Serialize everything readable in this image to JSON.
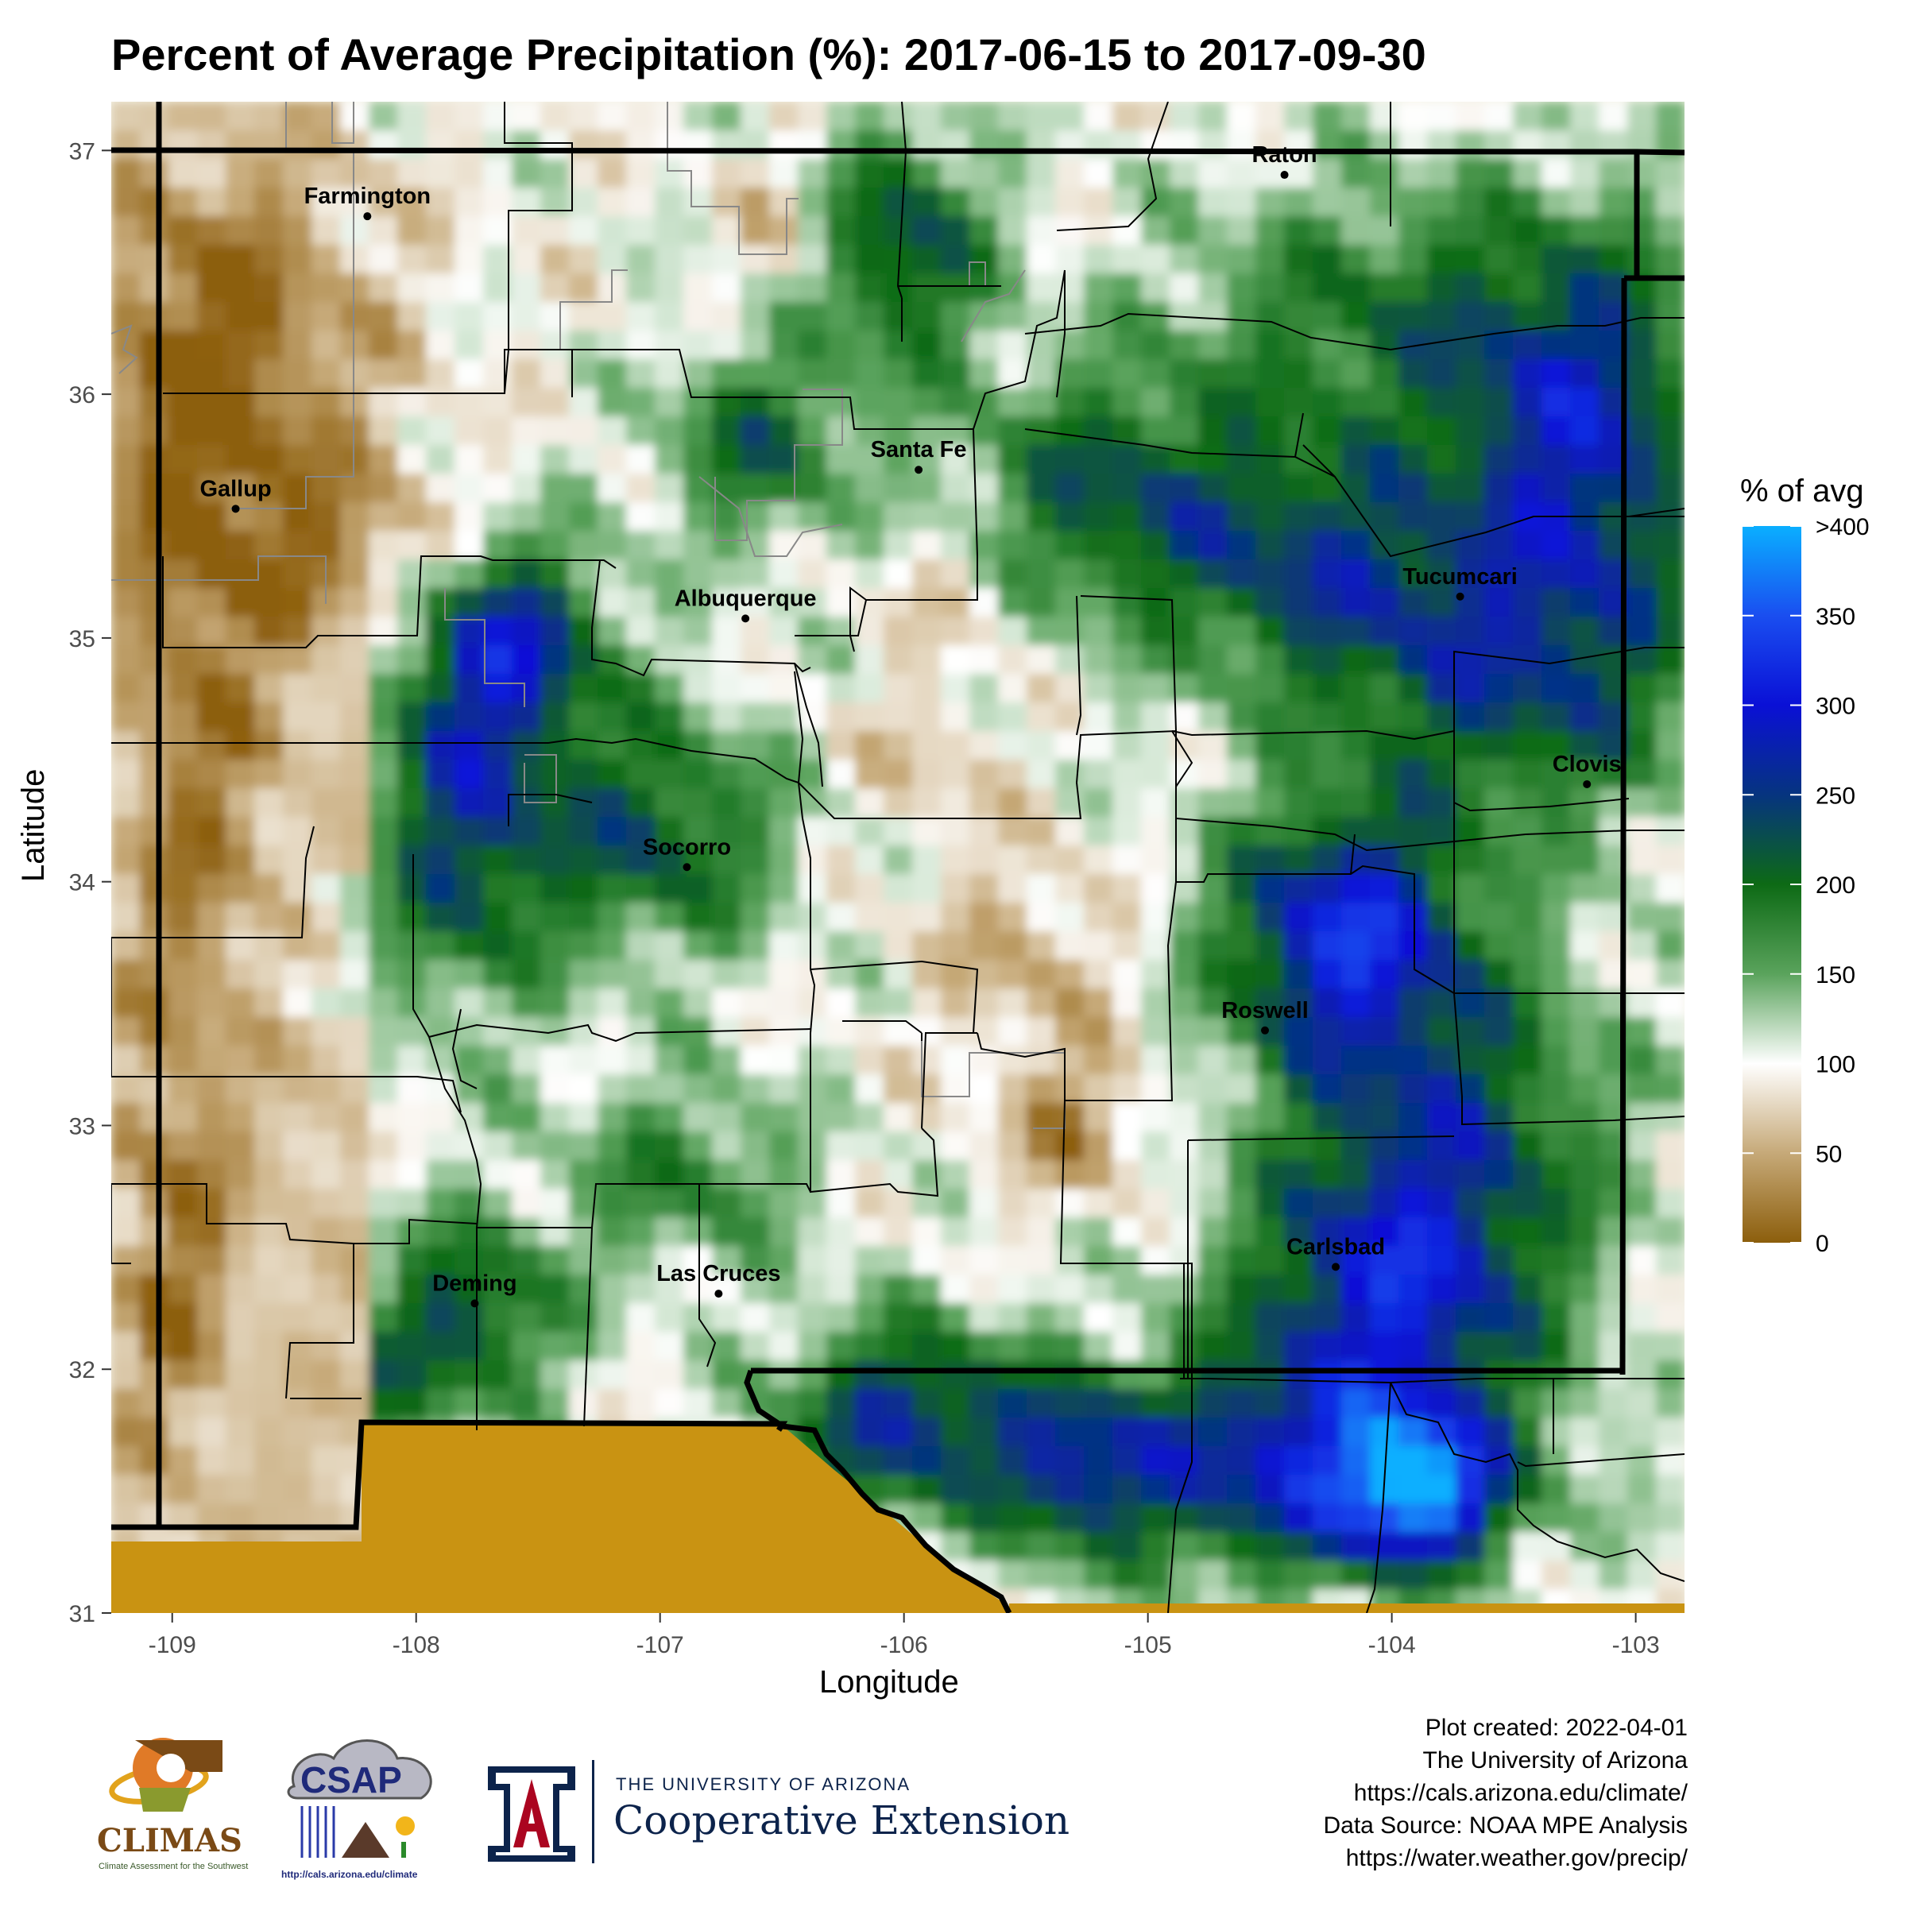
{
  "title": "Percent of Average Precipitation (%): 2017-06-15 to 2017-09-30",
  "axes": {
    "x_title": "Longitude",
    "y_title": "Latitude",
    "x_range": [
      -109.25,
      -102.8
    ],
    "y_range": [
      31,
      37.2
    ],
    "x_ticks": [
      "-109",
      "-108",
      "-107",
      "-106",
      "-105",
      "-104",
      "-103"
    ],
    "y_ticks": [
      "31",
      "32",
      "33",
      "34",
      "35",
      "36",
      "37"
    ]
  },
  "legend": {
    "title": "% of avg",
    "labels": [
      "0",
      "50",
      "100",
      "150",
      "200",
      "250",
      "300",
      "350",
      ">400"
    ],
    "colors": [
      "#8c5e0c",
      "#c6a978",
      "#ffffff",
      "#5aa35c",
      "#0d6a15",
      "#06347f",
      "#0a10d6",
      "#1a4ef0",
      "#0aafff"
    ]
  },
  "colors": {
    "dry": "#a07d3e",
    "normal": "#ffffff",
    "wet": "#1c7a25",
    "very_wet": "#1036a8",
    "no_data": "#c99312",
    "border": "#000000",
    "county": "#000000",
    "tribal": "#888888"
  },
  "cities": [
    {
      "name": "Farmington",
      "lon": -108.2,
      "lat": 36.73
    },
    {
      "name": "Raton",
      "lon": -104.44,
      "lat": 36.9
    },
    {
      "name": "Santa Fe",
      "lon": -105.94,
      "lat": 35.69
    },
    {
      "name": "Gallup",
      "lon": -108.74,
      "lat": 35.53
    },
    {
      "name": "Albuquerque",
      "lon": -106.65,
      "lat": 35.08
    },
    {
      "name": "Tucumcari",
      "lon": -103.72,
      "lat": 35.17
    },
    {
      "name": "Clovis",
      "lon": -103.2,
      "lat": 34.4
    },
    {
      "name": "Socorro",
      "lon": -106.89,
      "lat": 34.06
    },
    {
      "name": "Roswell",
      "lon": -104.52,
      "lat": 33.39
    },
    {
      "name": "Carlsbad",
      "lon": -104.23,
      "lat": 32.42
    },
    {
      "name": "Deming",
      "lon": -107.76,
      "lat": 32.27
    },
    {
      "name": "Las Cruces",
      "lon": -106.76,
      "lat": 32.31
    }
  ],
  "credits": [
    "Plot created: 2022-04-01",
    "The University of Arizona",
    "https://cals.arizona.edu/climate/",
    "Data Source: NOAA MPE Analysis",
    "https://water.weather.gov/precip/"
  ],
  "logos": {
    "climas": "CLIMAS",
    "climas_sub": "Climate Assessment for the Southwest",
    "csap": "CSAP",
    "csap_url": "http://cals.arizona.edu/climate",
    "ua_line1": "THE UNIVERSITY OF ARIZONA",
    "ua_line2": "Cooperative Extension"
  }
}
